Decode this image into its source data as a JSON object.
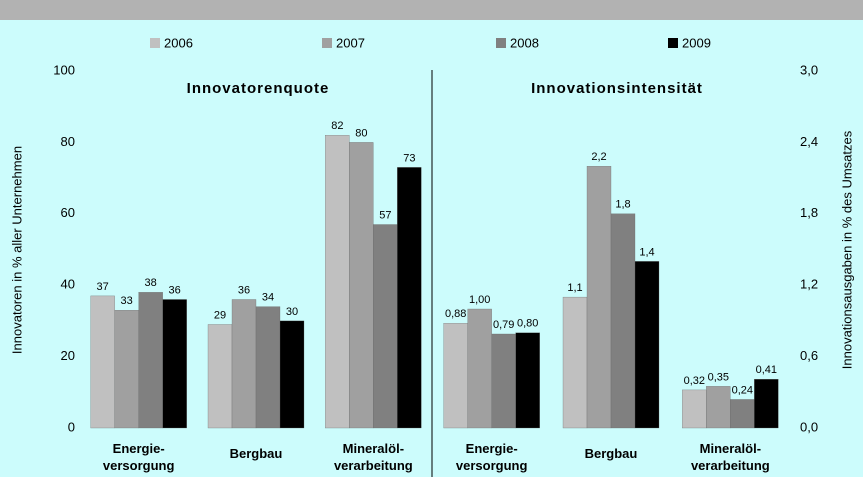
{
  "chart_data": [
    {
      "type": "bar",
      "title": "Innovatorenquote",
      "ylabel": "Innovatoren in % aller Unternehmen",
      "categories": [
        "Energie-\nversorgung",
        "Bergbau",
        "Mineralöl-\nverarbeitung"
      ],
      "series": [
        {
          "name": "2006",
          "color": "#c0c0c0",
          "values": [
            37,
            29,
            82
          ]
        },
        {
          "name": "2007",
          "color": "#a0a0a0",
          "values": [
            33,
            36,
            80
          ]
        },
        {
          "name": "2008",
          "color": "#808080",
          "values": [
            38,
            34,
            57
          ]
        },
        {
          "name": "2009",
          "color": "#000000",
          "values": [
            36,
            30,
            73
          ]
        }
      ],
      "ylim": [
        0,
        100
      ],
      "yticks": [
        0,
        20,
        40,
        60,
        80,
        100
      ]
    },
    {
      "type": "bar",
      "title": "Innovationsintensität",
      "y2label": "Innovationsausgaben in % des Umsatzes",
      "categories": [
        "Energie-\nversorgung",
        "Bergbau",
        "Mineralöl-\nverarbeitung"
      ],
      "series": [
        {
          "color": "#c0c0c0",
          "axis": "y2",
          "values": [
            0.88,
            1.1,
            0.32
          ],
          "value_labels": [
            "0,88",
            "1,1",
            "0,32"
          ]
        },
        {
          "color": "#a0a0a0",
          "axis": "y2",
          "values": [
            1.0,
            2.2,
            0.35
          ],
          "value_labels": [
            "1,00",
            "2,2",
            "0,35"
          ]
        },
        {
          "color": "#808080",
          "axis": "y2",
          "values": [
            0.79,
            1.8,
            0.24
          ],
          "value_labels": [
            "0,79",
            "1,8",
            "0,24"
          ]
        },
        {
          "color": "#000000",
          "axis": "y2",
          "values": [
            0.8,
            1.4,
            0.41
          ],
          "value_labels": [
            "0,80",
            "1,4",
            "0,41"
          ]
        }
      ],
      "y2lim": [
        0,
        3.0
      ],
      "y2ticks": [
        {
          "value": 0,
          "label": "0,0"
        },
        {
          "value": 0.6,
          "label": "0,6"
        },
        {
          "value": 1.2,
          "label": "1,2"
        },
        {
          "value": 1.8,
          "label": "1,8"
        },
        {
          "value": 2.4,
          "label": "2,4"
        },
        {
          "value": 3.0,
          "label": "3,0"
        }
      ]
    }
  ]
}
